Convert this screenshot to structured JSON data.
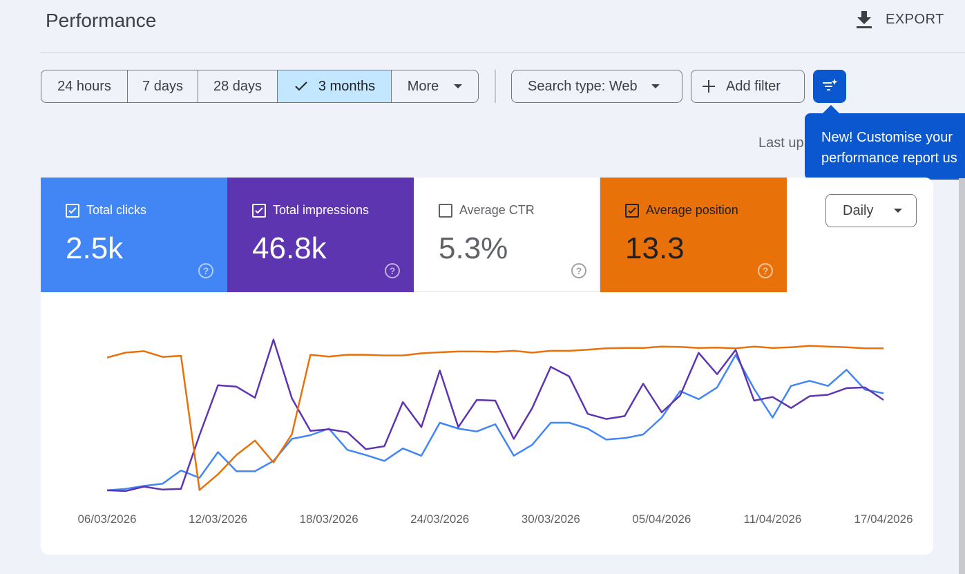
{
  "header": {
    "title": "Performance",
    "export_label": "EXPORT"
  },
  "date_range": {
    "options": [
      "24 hours",
      "7 days",
      "28 days",
      "3 months",
      "More"
    ],
    "selected": "3 months"
  },
  "filters": {
    "search_type": "Search type: Web",
    "add_filter": "Add filter"
  },
  "tooltip": {
    "line1": "New! Customise your",
    "line2": "performance report us"
  },
  "last_updated": "Last up",
  "metrics": [
    {
      "label": "Total clicks",
      "value": "2.5k",
      "checked": true,
      "color": "#4285f4"
    },
    {
      "label": "Total impressions",
      "value": "46.8k",
      "checked": true,
      "color": "#5e35b1"
    },
    {
      "label": "Average CTR",
      "value": "5.3%",
      "checked": false,
      "color": "#ffffff"
    },
    {
      "label": "Average position",
      "value": "13.3",
      "checked": true,
      "color": "#e8710a"
    }
  ],
  "granularity": "Daily",
  "chart_data": {
    "type": "line",
    "x": [
      "06/03/2026",
      "07/03/2026",
      "08/03/2026",
      "09/03/2026",
      "10/03/2026",
      "11/03/2026",
      "12/03/2026",
      "13/03/2026",
      "14/03/2026",
      "15/03/2026",
      "16/03/2026",
      "17/03/2026",
      "18/03/2026",
      "19/03/2026",
      "20/03/2026",
      "21/03/2026",
      "22/03/2026",
      "23/03/2026",
      "24/03/2026",
      "25/03/2026",
      "26/03/2026",
      "27/03/2026",
      "28/03/2026",
      "29/03/2026",
      "30/03/2026",
      "31/03/2026",
      "01/04/2026",
      "02/04/2026",
      "03/04/2026",
      "04/04/2026",
      "05/04/2026",
      "06/04/2026",
      "07/04/2026",
      "08/04/2026",
      "09/04/2026",
      "10/04/2026",
      "11/04/2026",
      "12/04/2026",
      "13/04/2026",
      "14/04/2026",
      "15/04/2026",
      "16/04/2026",
      "17/04/2026"
    ],
    "xticks": [
      "06/03/2026",
      "12/03/2026",
      "18/03/2026",
      "24/03/2026",
      "30/03/2026",
      "05/04/2026",
      "11/04/2026",
      "17/04/2026"
    ],
    "series": [
      {
        "name": "Total clicks",
        "color": "#4285f4",
        "values": [
          0,
          2,
          6,
          9,
          27,
          17,
          52,
          26,
          26,
          40,
          70,
          75,
          84,
          55,
          48,
          40,
          57,
          47,
          92,
          84,
          80,
          90,
          47,
          62,
          92,
          92,
          84,
          69,
          71,
          76,
          99,
          135,
          124,
          140,
          184,
          138,
          99,
          142,
          149,
          142,
          164,
          137,
          132
        ]
      },
      {
        "name": "Total impressions",
        "color": "#5e35b1",
        "values": [
          0,
          -1,
          5,
          1,
          2,
          75,
          143,
          141,
          126,
          205,
          125,
          81,
          83,
          79,
          56,
          60,
          120,
          86,
          163,
          86,
          123,
          122,
          70,
          112,
          168,
          155,
          104,
          97,
          101,
          145,
          106,
          129,
          187,
          158,
          191,
          122,
          127,
          112,
          128,
          130,
          139,
          140,
          123
        ]
      },
      {
        "name": "Average position",
        "color": "#e8710a",
        "values": [
          8,
          6.6,
          6.2,
          7.8,
          7.5,
          45,
          40.6,
          35.2,
          31.2,
          37.3,
          29.4,
          7.2,
          7.7,
          7.2,
          7.2,
          7.4,
          7.4,
          6.8,
          6.5,
          6.3,
          6.3,
          6.4,
          6.1,
          6.6,
          6.1,
          6.1,
          5.8,
          5.4,
          5.3,
          5.3,
          4.9,
          5.0,
          5.3,
          5.2,
          5.4,
          4.9,
          5.3,
          5.1,
          4.7,
          4.9,
          5.1,
          5.4,
          5.4
        ]
      }
    ]
  }
}
